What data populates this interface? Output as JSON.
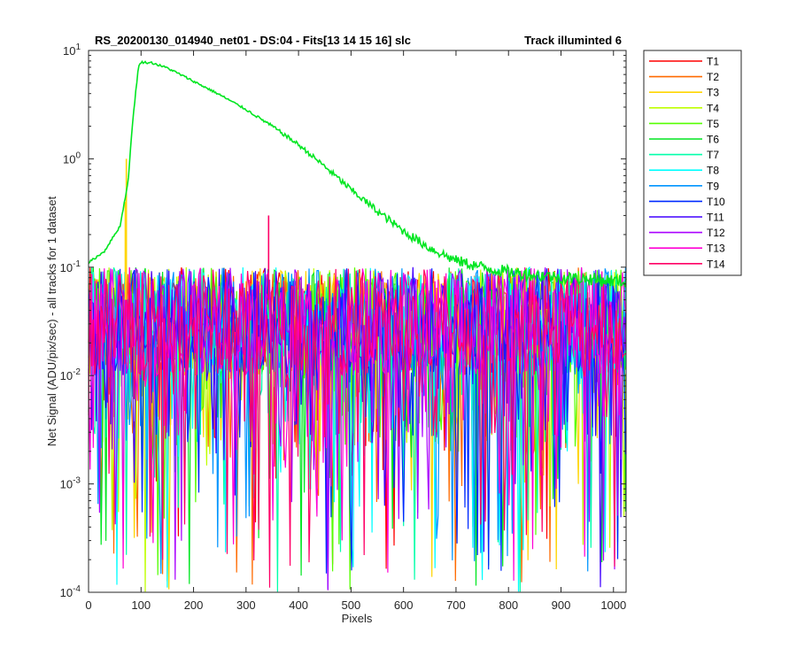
{
  "chart_data": {
    "type": "line",
    "title_left": "RS_20200130_014940_net01 - DS:04 - Fits[13  14  15  16]   slc",
    "title_right": "Track illuminted 6",
    "xlabel": "Pixels",
    "ylabel": "Net Signal (ADU/pix/sec) - all tracks for 1 dataset",
    "xlim": [
      0,
      1024
    ],
    "ylim": [
      0.0001,
      10
    ],
    "yscale": "log",
    "grid": false,
    "legend_position": "outside-top-right",
    "x_ticks": [
      "0",
      "100",
      "200",
      "300",
      "400",
      "500",
      "600",
      "700",
      "800",
      "900",
      "1000"
    ],
    "y_ticks": [
      {
        "base": "10",
        "exp": "-4",
        "value": 0.0001
      },
      {
        "base": "10",
        "exp": "-3",
        "value": 0.001
      },
      {
        "base": "10",
        "exp": "-2",
        "value": 0.01
      },
      {
        "base": "10",
        "exp": "-1",
        "value": 0.1
      },
      {
        "base": "10",
        "exp": "0",
        "value": 1
      },
      {
        "base": "10",
        "exp": "1",
        "value": 10
      }
    ],
    "series": [
      {
        "name": "T1",
        "color": "#ff0000"
      },
      {
        "name": "T2",
        "color": "#ff6a00"
      },
      {
        "name": "T3",
        "color": "#ffd500"
      },
      {
        "name": "T4",
        "color": "#bfff00"
      },
      {
        "name": "T5",
        "color": "#55ff00"
      },
      {
        "name": "T6",
        "color": "#00e621"
      },
      {
        "name": "T7",
        "color": "#00ffaa"
      },
      {
        "name": "T8",
        "color": "#00ffff"
      },
      {
        "name": "T9",
        "color": "#0095ff"
      },
      {
        "name": "T10",
        "color": "#002aff"
      },
      {
        "name": "T11",
        "color": "#4000ff"
      },
      {
        "name": "T12",
        "color": "#aa00ff"
      },
      {
        "name": "T13",
        "color": "#ff00d5"
      },
      {
        "name": "T14",
        "color": "#ff0066"
      }
    ],
    "illuminated_track": {
      "name": "T6",
      "points": [
        [
          0,
          0.11
        ],
        [
          30,
          0.14
        ],
        [
          60,
          0.24
        ],
        [
          75,
          0.6
        ],
        [
          85,
          2.5
        ],
        [
          95,
          7.0
        ],
        [
          100,
          7.8
        ],
        [
          120,
          7.7
        ],
        [
          150,
          6.9
        ],
        [
          200,
          5.2
        ],
        [
          250,
          3.9
        ],
        [
          300,
          2.85
        ],
        [
          350,
          2.0
        ],
        [
          400,
          1.35
        ],
        [
          450,
          0.85
        ],
        [
          500,
          0.52
        ],
        [
          550,
          0.33
        ],
        [
          600,
          0.215
        ],
        [
          650,
          0.15
        ],
        [
          700,
          0.115
        ],
        [
          750,
          0.1
        ],
        [
          800,
          0.09
        ],
        [
          850,
          0.085
        ],
        [
          900,
          0.08
        ],
        [
          950,
          0.078
        ],
        [
          1000,
          0.075
        ],
        [
          1024,
          0.074
        ]
      ]
    },
    "background_level_range": [
      0.005,
      0.1
    ],
    "background_min": 0.0001,
    "spikes": [
      {
        "series": "T3",
        "x": 72,
        "y": 1.0
      },
      {
        "series": "T3",
        "x": 70,
        "y": 0.4
      },
      {
        "series": "T14",
        "x": 343,
        "y": 0.3
      }
    ]
  }
}
